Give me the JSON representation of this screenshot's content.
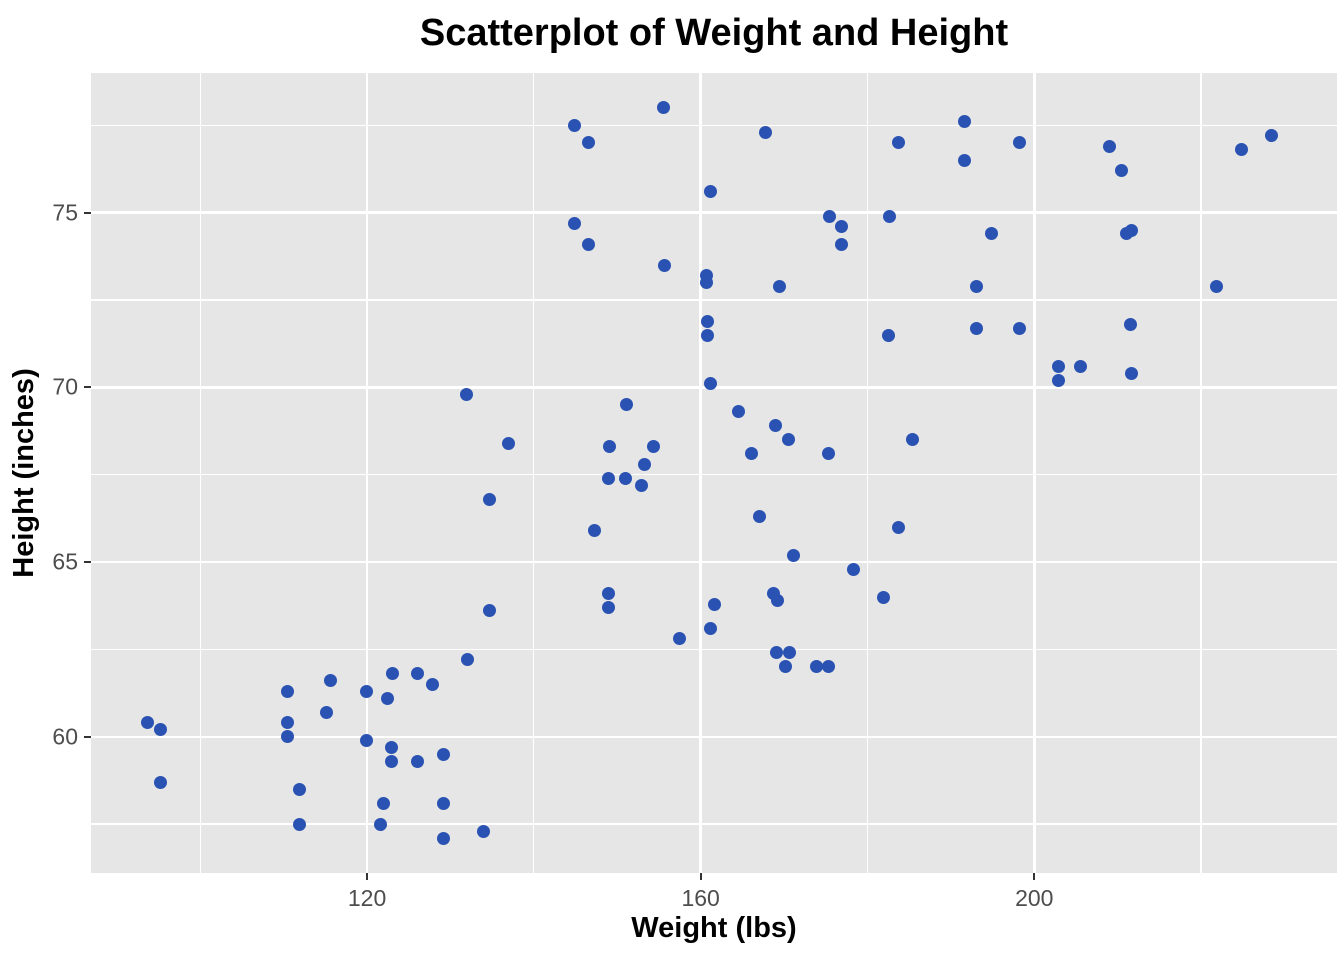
{
  "title": "Scatterplot of Weight and Height",
  "chart_data": {
    "type": "scatter",
    "title": "Scatterplot of Weight and Height",
    "xlabel": "Weight (lbs)",
    "ylabel": "Height (inches)",
    "xlim": [
      86.9,
      236.3
    ],
    "ylim": [
      56.1,
      79.0
    ],
    "x_ticks": [
      120,
      160,
      200
    ],
    "y_ticks": [
      60,
      65,
      70,
      75
    ],
    "x_minor_gridlines": [
      100,
      140,
      180,
      220
    ],
    "y_minor_gridlines": [
      57.5,
      62.5,
      67.5,
      72.5,
      77.5
    ],
    "grid": "major-and-minor",
    "legend_position": "none",
    "point_color": "#2a52b2",
    "panel_background": "#e6e6e6",
    "gridline_color": "#ffffff",
    "tick_color": "#333333",
    "tick_label_color": "#4d4d4d",
    "points": [
      [
        131.9,
        69.8
      ],
      [
        155.6,
        78.0
      ],
      [
        144.9,
        77.5
      ],
      [
        146.5,
        77.0
      ],
      [
        167.8,
        77.3
      ],
      [
        183.7,
        77.0
      ],
      [
        161.2,
        75.6
      ],
      [
        144.9,
        74.7
      ],
      [
        146.5,
        74.1
      ],
      [
        175.4,
        74.9
      ],
      [
        176.9,
        74.6
      ],
      [
        176.9,
        74.1
      ],
      [
        182.6,
        74.9
      ],
      [
        155.7,
        73.5
      ],
      [
        160.7,
        73.2
      ],
      [
        160.7,
        73.0
      ],
      [
        169.5,
        72.9
      ],
      [
        182.5,
        71.5
      ],
      [
        160.8,
        71.9
      ],
      [
        160.8,
        71.5
      ],
      [
        161.2,
        70.1
      ],
      [
        151.1,
        69.5
      ],
      [
        164.5,
        69.3
      ],
      [
        169.0,
        68.9
      ],
      [
        170.5,
        68.5
      ],
      [
        137.0,
        68.4
      ],
      [
        149.1,
        68.3
      ],
      [
        154.4,
        68.3
      ],
      [
        166.1,
        68.1
      ],
      [
        175.3,
        68.1
      ],
      [
        185.4,
        68.5
      ],
      [
        153.3,
        67.8
      ],
      [
        148.9,
        67.4
      ],
      [
        151.0,
        67.4
      ],
      [
        152.9,
        67.2
      ],
      [
        191.6,
        77.6
      ],
      [
        198.2,
        77.0
      ],
      [
        191.6,
        76.5
      ],
      [
        228.5,
        77.2
      ],
      [
        224.8,
        76.8
      ],
      [
        209.0,
        76.9
      ],
      [
        210.5,
        76.2
      ],
      [
        194.9,
        74.4
      ],
      [
        211.7,
        74.5
      ],
      [
        211.1,
        74.4
      ],
      [
        193.1,
        72.9
      ],
      [
        221.8,
        72.9
      ],
      [
        193.1,
        71.7
      ],
      [
        198.2,
        71.7
      ],
      [
        211.5,
        71.8
      ],
      [
        205.5,
        70.6
      ],
      [
        202.9,
        70.6
      ],
      [
        202.9,
        70.2
      ],
      [
        211.7,
        70.4
      ],
      [
        134.7,
        66.8
      ],
      [
        134.7,
        63.6
      ],
      [
        132.0,
        62.2
      ],
      [
        115.6,
        61.6
      ],
      [
        123.1,
        61.8
      ],
      [
        126.1,
        61.8
      ],
      [
        127.9,
        61.5
      ],
      [
        110.5,
        61.3
      ],
      [
        119.9,
        61.3
      ],
      [
        122.4,
        61.1
      ],
      [
        115.1,
        60.7
      ],
      [
        110.5,
        60.4
      ],
      [
        110.5,
        60.0
      ],
      [
        93.7,
        60.4
      ],
      [
        95.2,
        60.2
      ],
      [
        119.9,
        59.9
      ],
      [
        122.9,
        59.7
      ],
      [
        122.9,
        59.3
      ],
      [
        126.0,
        59.3
      ],
      [
        129.2,
        59.5
      ],
      [
        95.2,
        58.7
      ],
      [
        111.9,
        58.5
      ],
      [
        122.0,
        58.1
      ],
      [
        129.2,
        58.1
      ],
      [
        111.9,
        57.5
      ],
      [
        121.6,
        57.5
      ],
      [
        134.0,
        57.3
      ],
      [
        129.2,
        57.1
      ],
      [
        147.3,
        65.9
      ],
      [
        167.1,
        66.3
      ],
      [
        183.7,
        66.0
      ],
      [
        171.1,
        65.2
      ],
      [
        178.3,
        64.8
      ],
      [
        149.0,
        64.1
      ],
      [
        149.0,
        63.7
      ],
      [
        161.7,
        63.8
      ],
      [
        168.7,
        64.1
      ],
      [
        169.2,
        63.9
      ],
      [
        181.9,
        64.0
      ],
      [
        161.2,
        63.1
      ],
      [
        157.5,
        62.8
      ],
      [
        169.1,
        62.4
      ],
      [
        170.7,
        62.4
      ],
      [
        170.2,
        62.0
      ],
      [
        173.9,
        62.0
      ],
      [
        175.3,
        62.0
      ]
    ]
  }
}
